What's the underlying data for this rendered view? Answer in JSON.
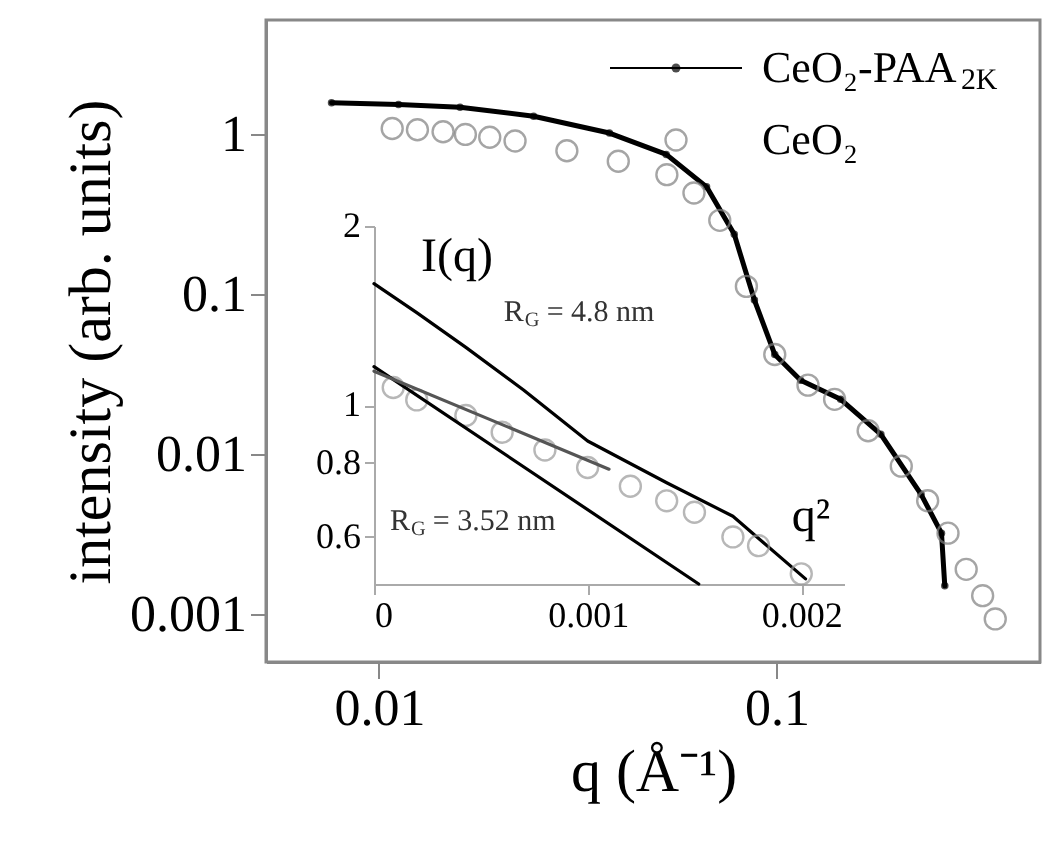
{
  "chart_data": [
    {
      "type": "line",
      "xlabel": "q (Å⁻¹)",
      "ylabel": "intensity (arb. units)",
      "log": "xy",
      "xlim": [
        0.0052,
        0.46
      ],
      "ylim": [
        0.0005,
        5.2
      ],
      "xticks": [
        0.01,
        0.1
      ],
      "yticks": [
        0.001,
        0.01,
        0.1,
        1
      ],
      "legend": "top right",
      "series": [
        {
          "name": "CeO₂-PAA$_{2K}$",
          "marker": "circle",
          "color": "#000000",
          "x": [
            0.0076,
            0.0112,
            0.016,
            0.0245,
            0.038,
            0.0528,
            0.0667,
            0.0783,
            0.088,
            0.099,
            0.115,
            0.145,
            0.183,
            0.231,
            0.26,
            0.265
          ],
          "values": [
            1.58,
            1.54,
            1.48,
            1.3,
            1.02,
            0.75,
            0.47,
            0.237,
            0.092,
            0.042,
            0.029,
            0.022,
            0.0133,
            0.0056,
            0.0032,
            0.0015
          ]
        },
        {
          "name": "CeO₂",
          "type": "scatter",
          "marker": "circle",
          "color": "#808080",
          "x": [
            0.0108,
            0.0125,
            0.0145,
            0.0165,
            0.019,
            0.022,
            0.0297,
            0.04,
            0.053,
            0.062,
            0.072,
            0.084,
            0.099,
            0.12,
            0.14,
            0.17,
            0.206,
            0.24,
            0.27,
            0.3,
            0.33,
            0.355
          ],
          "values": [
            1.09,
            1.07,
            1.04,
            1.0,
            0.96,
            0.91,
            0.79,
            0.68,
            0.56,
            0.43,
            0.29,
            0.112,
            0.042,
            0.027,
            0.022,
            0.014,
            0.0084,
            0.0051,
            0.0032,
            0.0019,
            0.0013,
            0.00093
          ]
        }
      ]
    },
    {
      "type": "line",
      "xlabel": "q²",
      "ylabel": "I(q)",
      "log": "y",
      "xlim": [
        0,
        0.0022
      ],
      "ylim": [
        0.5,
        2
      ],
      "xticks": [
        0,
        0.001,
        0.002
      ],
      "yticks": [
        0.6,
        0.8,
        1,
        2
      ],
      "annotations": [
        {
          "text": "R$_{G}$ = 4.8 nm",
          "x": 0.00043,
          "y": 1.25
        },
        "R$_{G}$ = 3.52 nm"
      ],
      "series": [
        {
          "color": "#000000",
          "x": [
            0,
            0.0002,
            0.00043,
            0.0007,
            0.001,
            0.00137,
            0.00168,
            0.00202
          ],
          "values": [
            1.6,
            1.43,
            1.25,
            1.06,
            0.87,
            0.74,
            0.65,
            0.51
          ]
        },
        {
          "type": "scatter",
          "marker": "circle",
          "color": "#999999",
          "x": [
            9e-05,
            0.0002,
            0.00043,
            0.0006,
            0.0008,
            0.001,
            0.0012,
            0.00137,
            0.0015,
            0.00168,
            0.0018,
            0.002
          ],
          "values": [
            1.07,
            1.02,
            0.96,
            0.9,
            0.84,
            0.785,
            0.73,
            0.69,
            0.66,
            0.6,
            0.58,
            0.52
          ]
        },
        {
          "color": "#000000",
          "x": [
            0,
            0.00152
          ],
          "values": [
            1.16,
            0.5
          ]
        },
        {
          "color": "#555555",
          "x": [
            0,
            0.0011
          ],
          "values": [
            1.14,
            0.78
          ]
        }
      ]
    }
  ]
}
